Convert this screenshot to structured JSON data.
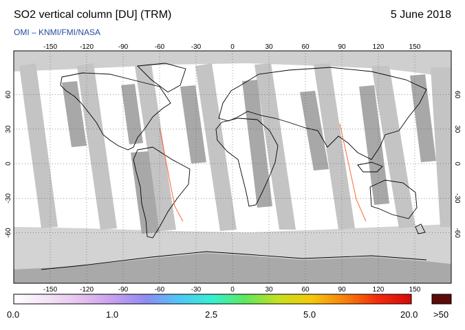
{
  "header": {
    "title": "SO2 vertical column [DU] (TRM)",
    "date": "5 June 2018",
    "credit": "OMI  –  KNMI/FMI/NASA"
  },
  "map": {
    "lon_ticks": [
      "-150",
      "-120",
      "-90",
      "-60",
      "-30",
      "0",
      "30",
      "60",
      "90",
      "120",
      "150"
    ],
    "lat_ticks_left": [
      "60",
      "30",
      "0",
      "-30",
      "-60"
    ],
    "lat_ticks_right": [
      "60",
      "30",
      "0",
      "-30",
      "-60"
    ],
    "colors": {
      "ocean": "#ffffff",
      "no_data": "#d3d3d3",
      "night_band": "#aaaaaa",
      "land_outline": "#000000"
    }
  },
  "colorbar": {
    "labels": [
      "0.0",
      "1.0",
      "2.5",
      "5.0",
      "20.0"
    ],
    "overflow_label": ">50",
    "overflow_color": "#5c0a0a",
    "gradient": [
      "#ffffff",
      "#f3e4f6",
      "#e6c2ef",
      "#c79fee",
      "#8f8cf3",
      "#4fc7f7",
      "#35f0d0",
      "#5fe85c",
      "#c6e01e",
      "#f6c70c",
      "#f7800b",
      "#f42a0b",
      "#d30b0b"
    ]
  }
}
